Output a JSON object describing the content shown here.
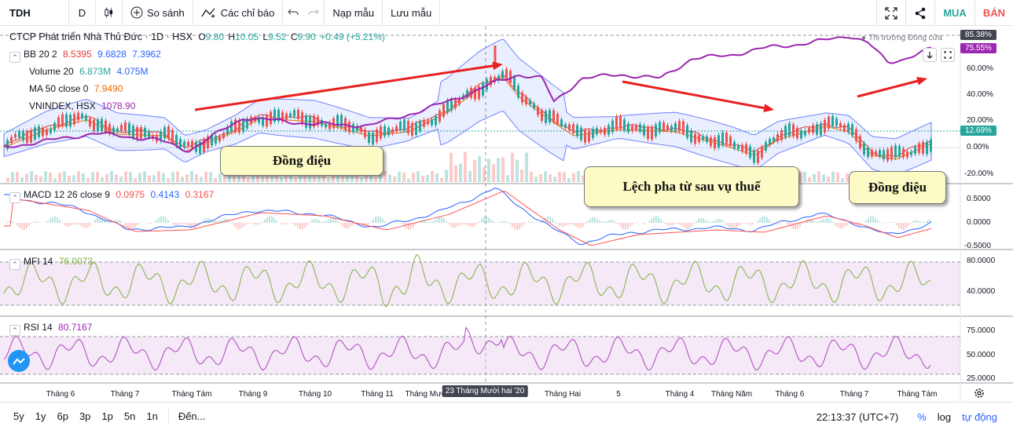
{
  "toolbar": {
    "symbol": "TDH",
    "interval": "D",
    "compare_label": "So sánh",
    "indicators_label": "Các chỉ báo",
    "load_layout_label": "Nạp mẫu",
    "save_layout_label": "Lưu mẫu",
    "buy_label": "MUA",
    "sell_label": "BÁN"
  },
  "main_legend": {
    "title": "CTCP Phát triển Nhà Thủ Đức · 1D · HSX",
    "open_label": "O",
    "open": "9.80",
    "high_label": "H",
    "high": "10.05",
    "low_label": "L",
    "low": "9.52",
    "close_label": "C",
    "close": "9.90",
    "change": "+0.49 (+5.21%)",
    "market_status": "Thị trường Đóng cửa"
  },
  "indicators": {
    "bb": {
      "label": "BB 20 2",
      "v1": "8.5395",
      "v2": "9.6828",
      "v3": "7.3962"
    },
    "volume": {
      "label": "Volume 20",
      "v1": "6.873M",
      "v2": "4.075M"
    },
    "ma": {
      "label": "MA 50 close 0",
      "v1": "7.9490"
    },
    "vnindex": {
      "label": "VNINDEX, HSX",
      "v1": "1078.90"
    },
    "macd": {
      "label": "MACD 12 26 close 9",
      "v1": "0.0975",
      "v2": "0.4143",
      "v3": "0.3167"
    },
    "mfi": {
      "label": "MFI 14",
      "v1": "76.0073"
    },
    "rsi": {
      "label": "RSI 14",
      "v1": "80.7167"
    }
  },
  "price_axis": [
    "60.00%",
    "40.00%",
    "20.00%",
    "0.00%",
    "-20.00%"
  ],
  "price_tags": {
    "top": "85.38%",
    "vnindex": "75.55%",
    "current": "12.69%"
  },
  "macd_axis": [
    "0.5000",
    "0.0000",
    "-0.5000"
  ],
  "mfi_axis": [
    "80.0000",
    "40.0000"
  ],
  "rsi_axis": [
    "75.0000",
    "50.0000",
    "25.0000"
  ],
  "x_axis": [
    "Tháng 6",
    "Tháng 7",
    "Tháng Tám",
    "Tháng 9",
    "Tháng 10",
    "Tháng 11",
    "Tháng Mười",
    "Tháng Hai",
    "5",
    "Tháng 4",
    "Tháng Năm",
    "Tháng 6",
    "Tháng 7",
    "Tháng Tám"
  ],
  "crosshair_date": "23 Tháng Mười hai '20",
  "annotations": {
    "a1": "Đồng điệu",
    "a2": "Lệch pha từ sau vụ thuế",
    "a3": "Đồng điệu"
  },
  "footer": {
    "ranges": [
      "5y",
      "1y",
      "6p",
      "3p",
      "1p",
      "5n",
      "1n"
    ],
    "goto_label": "Đến...",
    "time": "22:13:37 (UTC+7)",
    "percent_label": "%",
    "log_label": "log",
    "auto_label": "tự động"
  },
  "colors": {
    "up": "#26a69a",
    "down": "#ef5350",
    "vnindex": "#9c27b0",
    "bb_fill": "#2962ff",
    "macd": "#2962ff",
    "signal": "#ff5252",
    "mfi": "#7cb342",
    "rsi": "#ab47bc",
    "arrow": "#e82020"
  }
}
